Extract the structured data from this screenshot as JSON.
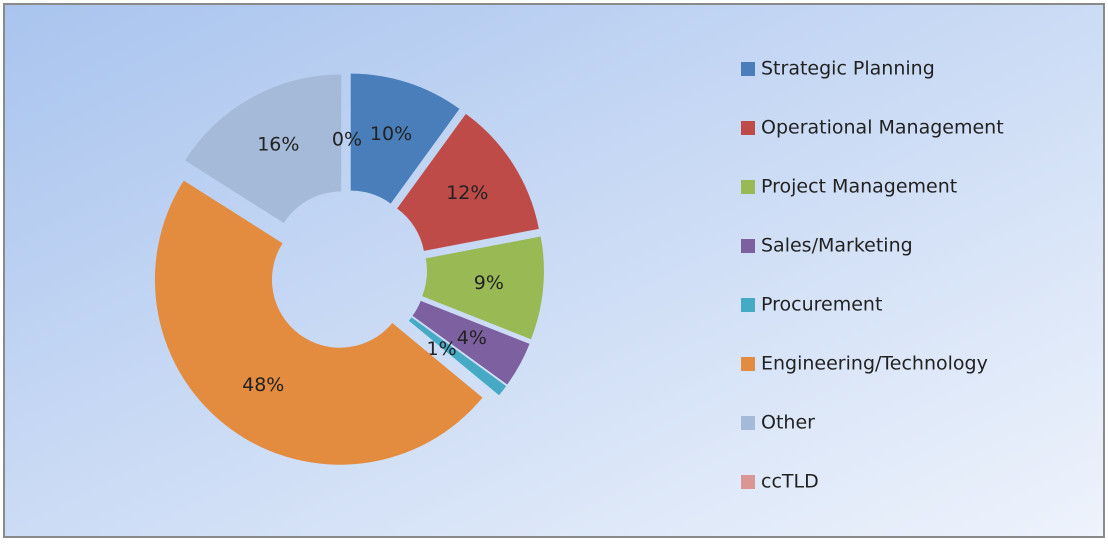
{
  "chart_data": {
    "type": "pie",
    "categories": [
      "Strategic Planning",
      "Operational Management",
      "Project Management",
      "Sales/Marketing",
      "Procurement",
      "Engineering/Technology",
      "Other",
      "ccTLD"
    ],
    "values": [
      10,
      12,
      9,
      4,
      1,
      48,
      16,
      0
    ],
    "value_labels": [
      "10%",
      "12%",
      "9%",
      "4%",
      "1%",
      "48%",
      "16%",
      "0%"
    ],
    "colors": [
      "#4a7ebb",
      "#be4b48",
      "#98b954",
      "#7d60a0",
      "#46aac5",
      "#e38b3e",
      "#a5b9d9",
      "#d99694"
    ],
    "donut": true,
    "exploded": true,
    "legend": "right"
  }
}
